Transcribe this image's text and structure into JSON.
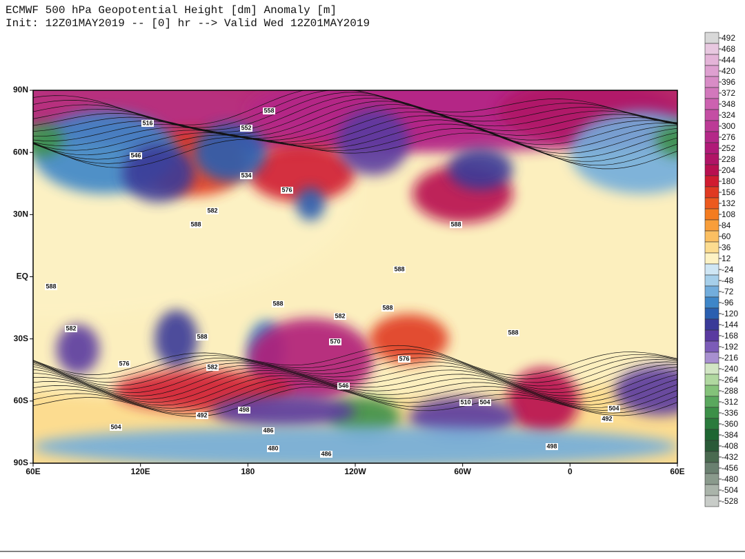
{
  "title": {
    "line1": "ECMWF 500 hPa Geopotential Height [dm] Anomaly [m]",
    "line2": "Init: 12Z01MAY2019 -- [0] hr --> Valid Wed 12Z01MAY2019"
  },
  "map": {
    "lat_ticks": [
      {
        "value": 90,
        "label": "90N"
      },
      {
        "value": 60,
        "label": "60N"
      },
      {
        "value": 30,
        "label": "30N"
      },
      {
        "value": 0,
        "label": "EQ"
      },
      {
        "value": -30,
        "label": "30S"
      },
      {
        "value": -60,
        "label": "60S"
      },
      {
        "value": -90,
        "label": "90S"
      }
    ],
    "lon_ticks": [
      {
        "value": 60,
        "label": "60E"
      },
      {
        "value": 120,
        "label": "120E"
      },
      {
        "value": 180,
        "label": "180"
      },
      {
        "value": 240,
        "label": "120W"
      },
      {
        "value": 300,
        "label": "60W"
      },
      {
        "value": 360,
        "label": "0"
      },
      {
        "value": 420,
        "label": "60E"
      }
    ],
    "contour_labels": [
      558,
      516,
      552,
      546,
      534,
      576,
      582,
      588,
      588,
      588,
      588,
      588,
      582,
      588,
      588,
      570,
      576,
      582,
      546,
      510,
      504,
      498,
      492,
      486,
      480,
      486,
      504,
      498,
      492,
      504,
      582,
      588,
      576
    ]
  },
  "colorbar": {
    "levels": [
      492,
      468,
      444,
      420,
      396,
      372,
      348,
      324,
      300,
      276,
      252,
      228,
      204,
      180,
      156,
      132,
      108,
      84,
      60,
      36,
      12,
      -24,
      -48,
      -72,
      -96,
      -120,
      -144,
      -168,
      -192,
      -216,
      -240,
      -264,
      -288,
      -312,
      -336,
      -360,
      -384,
      -408,
      -432,
      -456,
      -480,
      -504,
      -528
    ],
    "colors": [
      "#d8d8d8",
      "#e8c8e0",
      "#e4b4d8",
      "#dea0d0",
      "#d88cc6",
      "#d278bc",
      "#cc62b0",
      "#c44ea4",
      "#bc3a96",
      "#b42888",
      "#b01a78",
      "#b01466",
      "#b81050",
      "#d01c30",
      "#e03a22",
      "#ec5a1e",
      "#f47c20",
      "#f89e3a",
      "#fbbf62",
      "#fcdc90",
      "#fdf2c4",
      "#cfe6f4",
      "#a6cfea",
      "#72addc",
      "#3e86c8",
      "#2a5fb0",
      "#3a3a98",
      "#5a3aa0",
      "#7c5cb8",
      "#a890d0",
      "#d2e6c4",
      "#b0d8a0",
      "#84c27a",
      "#5aa85e",
      "#3c9048",
      "#2a7a3c",
      "#1e6632",
      "#2a5a38",
      "#4a6a50",
      "#6a8070",
      "#8a9a8c",
      "#aab4aa",
      "#c8ccc8"
    ]
  }
}
